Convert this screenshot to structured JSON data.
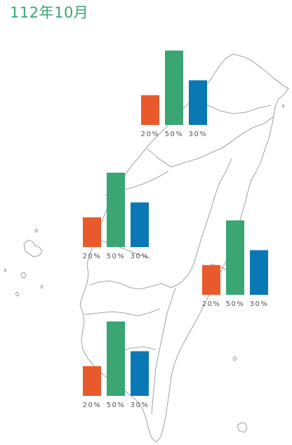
{
  "title": "112年10月",
  "colors": {
    "orange": "#e85a2c",
    "green": "#3aa672",
    "blue": "#0a78b5",
    "outline": "#8a8a8a",
    "title": "#3aa672"
  },
  "chart_data": [
    {
      "type": "bar",
      "region": "north",
      "values": [
        20,
        50,
        30
      ],
      "labels": [
        "20%",
        "50%",
        "30%"
      ],
      "colors": [
        "#e85a2c",
        "#3aa672",
        "#0a78b5"
      ]
    },
    {
      "type": "bar",
      "region": "central",
      "values": [
        20,
        50,
        30
      ],
      "labels": [
        "20%",
        "50%",
        "30%"
      ],
      "colors": [
        "#e85a2c",
        "#3aa672",
        "#0a78b5"
      ]
    },
    {
      "type": "bar",
      "region": "east",
      "values": [
        20,
        50,
        30
      ],
      "labels": [
        "20%",
        "50%",
        "30%"
      ],
      "colors": [
        "#e85a2c",
        "#3aa672",
        "#0a78b5"
      ]
    },
    {
      "type": "bar",
      "region": "south",
      "values": [
        20,
        50,
        30
      ],
      "labels": [
        "20%",
        "50%",
        "30%"
      ],
      "colors": [
        "#e85a2c",
        "#3aa672",
        "#0a78b5"
      ]
    }
  ]
}
